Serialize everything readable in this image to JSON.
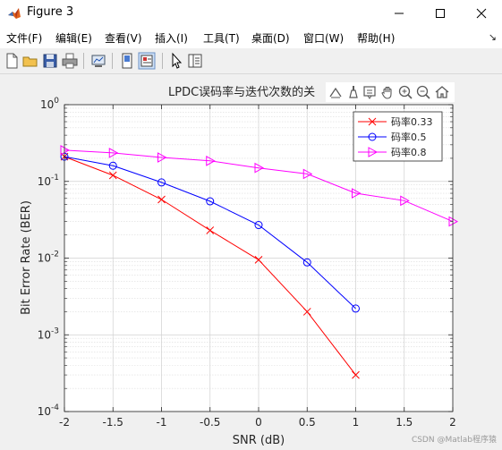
{
  "window": {
    "title": "Figure 3",
    "icon": "matlab-logo-icon",
    "controls": [
      "minimize-icon",
      "maximize-icon",
      "close-icon"
    ]
  },
  "menu": {
    "items": [
      "文件(F)",
      "编辑(E)",
      "查看(V)",
      "插入(I)",
      "工具(T)",
      "桌面(D)",
      "窗口(W)",
      "帮助(H)"
    ],
    "overflow_icon": "chevron-icon"
  },
  "toolbar": {
    "buttons": [
      "new-figure-icon",
      "open-file-icon",
      "save-icon",
      "print-icon",
      "link-plot-icon",
      "hide-plot-tools-icon",
      "show-plot-tools-icon",
      "select-arrow-icon",
      "property-editor-icon"
    ]
  },
  "axes_toolbar": {
    "buttons": [
      "export-icon",
      "brush-icon",
      "data-tips-icon",
      "pan-icon",
      "zoom-in-icon",
      "zoom-out-icon",
      "home-icon"
    ]
  },
  "chart_data": {
    "type": "line",
    "title": "LPDC误码率与迭代次数的关",
    "xlabel": "SNR (dB)",
    "ylabel": "Bit Error Rate (BER)",
    "xlim": [
      -2,
      2
    ],
    "ylim": [
      0.0001,
      1
    ],
    "yscale": "log",
    "grid": true,
    "legend_position": "top-right",
    "x_ticks": [
      "-2",
      "-1.5",
      "-1",
      "-0.5",
      "0",
      "0.5",
      "1",
      "1.5",
      "2"
    ],
    "y_tick_labels": [
      {
        "base": "10",
        "exp": "0"
      },
      {
        "base": "10",
        "exp": "-1"
      },
      {
        "base": "10",
        "exp": "-2"
      },
      {
        "base": "10",
        "exp": "-3"
      },
      {
        "base": "10",
        "exp": "-4"
      }
    ],
    "series": [
      {
        "name": "码率0.33",
        "color": "#ff0000",
        "marker": "x",
        "x": [
          -2,
          -1.5,
          -1,
          -0.5,
          0,
          0.5,
          1
        ],
        "y": [
          0.21,
          0.12,
          0.058,
          0.023,
          0.0095,
          0.002,
          0.0003
        ]
      },
      {
        "name": "码率0.5",
        "color": "#0000ff",
        "marker": "o",
        "x": [
          -2,
          -1.5,
          -1,
          -0.5,
          0,
          0.5,
          1
        ],
        "y": [
          0.21,
          0.16,
          0.097,
          0.055,
          0.027,
          0.0088,
          0.0022
        ]
      },
      {
        "name": "码率0.8",
        "color": "#ff00ff",
        "marker": "triangle-right",
        "x": [
          -2,
          -1.5,
          -1,
          -0.5,
          0,
          0.5,
          1,
          1.5,
          2
        ],
        "y": [
          0.255,
          0.235,
          0.205,
          0.185,
          0.15,
          0.125,
          0.07,
          0.056,
          0.03
        ]
      }
    ]
  },
  "watermark": "CSDN @Matlab程序猿"
}
